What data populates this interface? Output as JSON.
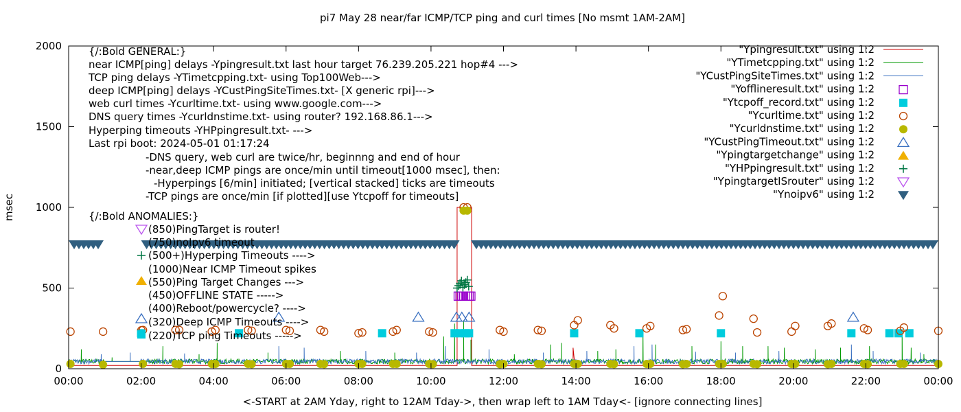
{
  "chart_data": {
    "type": "scatter",
    "title": "pi7 May 28  near/far ICMP/TCP ping and curl times [No msmt 1AM-2AM]",
    "xlabel": "<-START at 2AM Yday, right to 12AM Tday->, then wrap left to 1AM Tday<- [ignore connecting lines]",
    "ylabel": "msec",
    "xlim": [
      0,
      24
    ],
    "ylim": [
      0,
      2000
    ],
    "x_unit": "hours",
    "x_ticks": [
      {
        "x": 0,
        "label": "00:00"
      },
      {
        "x": 2,
        "label": "02:00"
      },
      {
        "x": 4,
        "label": "04:00"
      },
      {
        "x": 6,
        "label": "06:00"
      },
      {
        "x": 8,
        "label": "08:00"
      },
      {
        "x": 10,
        "label": "10:00"
      },
      {
        "x": 12,
        "label": "12:00"
      },
      {
        "x": 14,
        "label": "14:00"
      },
      {
        "x": 16,
        "label": "16:00"
      },
      {
        "x": 18,
        "label": "18:00"
      },
      {
        "x": 20,
        "label": "20:00"
      },
      {
        "x": 22,
        "label": "22:00"
      },
      {
        "x": 24,
        "label": "00:00"
      }
    ],
    "y_ticks": [
      {
        "y": 0,
        "label": "0"
      },
      {
        "y": 500,
        "label": "500"
      },
      {
        "y": 1000,
        "label": "1000"
      },
      {
        "y": 1500,
        "label": "1500"
      },
      {
        "y": 2000,
        "label": "2000"
      }
    ],
    "grid": false,
    "legend_position": "top-right",
    "annotations": [
      "{/:Bold GENERAL:}",
      "near ICMP[ping] delays -Ypingresult.txt last hour target 76.239.205.221 hop#4 --->",
      "TCP ping delays -YTimetcpping.txt- using Top100Web--->",
      "deep ICMP[ping] delays -YCustPingSiteTimes.txt- [X generic rpi]--->",
      "web curl times -Ycurltime.txt- using www.google.com--->",
      "DNS query times -Ycurldnstime.txt- using router? 192.168.86.1--->",
      "Hyperping timeouts -YHPpingresult.txt- --->",
      "Last rpi boot: 2024-05-01 01:17:24",
      "-DNS query, web curl are twice/hr, beginnng and end of hour",
      "-near,deep ICMP pings are once/min until timeout[1000 msec], then:",
      "-Hyperpings [6/min] initiated; [vertical stacked] ticks are timeouts",
      "-TCP pings are once/min [if plotted][use Ytcpoff for timeouts]",
      "{/:Bold ANOMALIES:}",
      "(850)PingTarget is router!",
      "(750)noIpv6 timeout",
      "(500+)Hyperping Timeouts ---->",
      "(1000)Near ICMP Timeout spikes",
      "(550)Ping Target Changes --->",
      "(450)OFFLINE STATE ----->",
      "(400)Reboot/powercycle? ---->",
      "(320)Deep ICMP Timeouts ---->",
      "(220)TCP ping Timeouts ----->"
    ],
    "series": [
      {
        "name": "\"Ypingresult.txt\" using 1:2",
        "style": "line",
        "color": "#cc0000",
        "baseline": 20,
        "spikes": [
          [
            10.72,
            1000
          ],
          [
            10.78,
            1000
          ],
          [
            11.05,
            1000
          ],
          [
            11.12,
            1000
          ],
          [
            13.92,
            130
          ],
          [
            13.97,
            110
          ]
        ]
      },
      {
        "name": "\"YTimetcpping.txt\" using 1:2",
        "style": "line",
        "color": "#009900",
        "baseline": 45,
        "spikes": [
          [
            0.35,
            120
          ],
          [
            1.2,
            70
          ],
          [
            2.6,
            140
          ],
          [
            3.6,
            90
          ],
          [
            4.1,
            160
          ],
          [
            5.5,
            100
          ],
          [
            7.5,
            110
          ],
          [
            9.0,
            100
          ],
          [
            10.35,
            200
          ],
          [
            10.65,
            280
          ],
          [
            10.9,
            300
          ],
          [
            11.1,
            180
          ],
          [
            12.3,
            90
          ],
          [
            13.3,
            150
          ],
          [
            13.6,
            160
          ],
          [
            14.6,
            110
          ],
          [
            15.1,
            120
          ],
          [
            15.85,
            230
          ],
          [
            16.2,
            150
          ],
          [
            17.2,
            140
          ],
          [
            18.0,
            170
          ],
          [
            18.6,
            140
          ],
          [
            19.3,
            140
          ],
          [
            19.75,
            130
          ],
          [
            20.6,
            120
          ],
          [
            21.3,
            130
          ],
          [
            22.1,
            140
          ],
          [
            23.0,
            240
          ],
          [
            23.25,
            130
          ],
          [
            23.6,
            90
          ]
        ]
      },
      {
        "name": "\"YCustPingSiteTimes.txt\" using 1:2",
        "style": "line",
        "color": "#3a70c0",
        "baseline": 45,
        "spikes": [
          [
            0.9,
            90
          ],
          [
            1.7,
            100
          ],
          [
            3.2,
            95
          ],
          [
            5.8,
            140
          ],
          [
            6.5,
            130
          ],
          [
            8.2,
            110
          ],
          [
            9.6,
            100
          ],
          [
            10.4,
            140
          ],
          [
            11.6,
            120
          ],
          [
            13.1,
            100
          ],
          [
            14.3,
            110
          ],
          [
            15.6,
            140
          ],
          [
            16.1,
            150
          ],
          [
            17.3,
            105
          ],
          [
            18.4,
            100
          ],
          [
            19.6,
            110
          ],
          [
            21.6,
            150
          ],
          [
            22.2,
            110
          ],
          [
            23.5,
            100
          ]
        ]
      },
      {
        "name": "\"Yofflineresult.txt\" using 1:2",
        "style": "marker",
        "marker": "square-open",
        "color": "#9900cc",
        "points": [
          [
            10.75,
            450
          ],
          [
            10.8,
            450
          ],
          [
            10.85,
            450
          ],
          [
            10.9,
            450
          ],
          [
            10.95,
            450
          ],
          [
            11.0,
            450
          ],
          [
            11.05,
            450
          ],
          [
            11.1,
            450
          ]
        ]
      },
      {
        "name": "\"Ytcpoff_record.txt\" using 1:2",
        "style": "marker",
        "marker": "square-filled",
        "color": "#00ccdd",
        "points": [
          [
            2.0,
            220
          ],
          [
            4.7,
            220
          ],
          [
            8.65,
            220
          ],
          [
            10.65,
            220
          ],
          [
            10.8,
            220
          ],
          [
            10.95,
            220
          ],
          [
            11.05,
            220
          ],
          [
            13.95,
            220
          ],
          [
            15.75,
            220
          ],
          [
            18.0,
            220
          ],
          [
            21.6,
            220
          ],
          [
            22.65,
            220
          ],
          [
            22.9,
            220
          ],
          [
            23.2,
            220
          ]
        ]
      },
      {
        "name": "\"Ycurltime.txt\" using 1:2",
        "style": "marker",
        "marker": "circle-open",
        "color": "#bb4400",
        "points": [
          [
            0.05,
            230
          ],
          [
            0.95,
            230
          ],
          [
            2.05,
            240
          ],
          [
            2.95,
            240
          ],
          [
            3.05,
            240
          ],
          [
            3.95,
            230
          ],
          [
            4.05,
            240
          ],
          [
            4.95,
            240
          ],
          [
            5.05,
            235
          ],
          [
            6.0,
            240
          ],
          [
            6.1,
            235
          ],
          [
            6.95,
            240
          ],
          [
            7.05,
            230
          ],
          [
            8.0,
            220
          ],
          [
            8.1,
            225
          ],
          [
            8.95,
            230
          ],
          [
            9.05,
            240
          ],
          [
            9.95,
            230
          ],
          [
            10.05,
            225
          ],
          [
            10.9,
            1000
          ],
          [
            11.0,
            1000
          ],
          [
            11.9,
            240
          ],
          [
            12.0,
            230
          ],
          [
            12.95,
            240
          ],
          [
            13.05,
            235
          ],
          [
            13.95,
            270
          ],
          [
            14.05,
            300
          ],
          [
            14.95,
            270
          ],
          [
            15.05,
            250
          ],
          [
            15.95,
            250
          ],
          [
            16.05,
            265
          ],
          [
            16.95,
            240
          ],
          [
            17.05,
            245
          ],
          [
            17.95,
            330
          ],
          [
            18.05,
            450
          ],
          [
            18.9,
            310
          ],
          [
            19.0,
            225
          ],
          [
            19.95,
            230
          ],
          [
            20.05,
            265
          ],
          [
            20.95,
            265
          ],
          [
            21.05,
            280
          ],
          [
            21.95,
            250
          ],
          [
            22.05,
            240
          ],
          [
            22.95,
            235
          ],
          [
            23.05,
            255
          ],
          [
            24.0,
            235
          ]
        ]
      },
      {
        "name": "\"Ycurldnstime.txt\" using 1:2",
        "style": "marker",
        "marker": "circle-filled",
        "color": "#b8b800",
        "points": [
          [
            0.05,
            30
          ],
          [
            0.95,
            25
          ],
          [
            2.05,
            30
          ],
          [
            2.95,
            30
          ],
          [
            3.05,
            28
          ],
          [
            3.95,
            30
          ],
          [
            4.05,
            30
          ],
          [
            4.95,
            30
          ],
          [
            5.05,
            28
          ],
          [
            6.0,
            30
          ],
          [
            6.1,
            30
          ],
          [
            6.95,
            30
          ],
          [
            7.05,
            28
          ],
          [
            8.0,
            30
          ],
          [
            8.1,
            30
          ],
          [
            8.95,
            30
          ],
          [
            9.05,
            30
          ],
          [
            9.95,
            30
          ],
          [
            10.05,
            28
          ],
          [
            10.9,
            980
          ],
          [
            11.0,
            980
          ],
          [
            11.9,
            28
          ],
          [
            12.0,
            30
          ],
          [
            12.95,
            30
          ],
          [
            13.05,
            28
          ],
          [
            13.95,
            30
          ],
          [
            14.05,
            30
          ],
          [
            14.95,
            30
          ],
          [
            15.05,
            28
          ],
          [
            15.95,
            30
          ],
          [
            16.05,
            30
          ],
          [
            16.95,
            28
          ],
          [
            17.05,
            30
          ],
          [
            17.95,
            30
          ],
          [
            18.05,
            30
          ],
          [
            18.9,
            30
          ],
          [
            19.0,
            28
          ],
          [
            19.95,
            30
          ],
          [
            20.05,
            30
          ],
          [
            20.95,
            28
          ],
          [
            21.05,
            30
          ],
          [
            21.95,
            30
          ],
          [
            22.05,
            28
          ],
          [
            22.95,
            30
          ],
          [
            23.05,
            30
          ],
          [
            24.0,
            30
          ]
        ]
      },
      {
        "name": "\"YCustPingTimeout.txt\" using 1:2",
        "style": "marker",
        "marker": "triangle-up-open",
        "color": "#3a70c0",
        "points": [
          [
            5.8,
            320
          ],
          [
            9.65,
            320
          ],
          [
            10.7,
            320
          ],
          [
            10.85,
            320
          ],
          [
            11.05,
            320
          ],
          [
            21.65,
            320
          ]
        ]
      },
      {
        "name": "\"Ypingtargetchange\" using 1:2",
        "style": "marker",
        "marker": "triangle-up-filled",
        "color": "#f0b000",
        "points": []
      },
      {
        "name": "\"YHPpingresult.txt\" using 1:2",
        "style": "marker",
        "marker": "plus",
        "color": "#007744",
        "points": [
          [
            10.72,
            500
          ],
          [
            10.76,
            515
          ],
          [
            10.8,
            530
          ],
          [
            10.84,
            545
          ],
          [
            10.88,
            505
          ],
          [
            10.92,
            520
          ],
          [
            10.96,
            535
          ],
          [
            11.0,
            550
          ],
          [
            11.04,
            510
          ]
        ]
      },
      {
        "name": "\"YpingtargetISrouter\" using 1:2",
        "style": "marker",
        "marker": "triangle-down-open",
        "color": "#bb55ee",
        "points": []
      },
      {
        "name": "\"Ynoipv6\" using 1:2",
        "style": "marker",
        "marker": "triangle-down-filled",
        "color": "#305f80",
        "value": 770,
        "segments": [
          [
            0.0,
            1.0
          ],
          [
            2.0,
            10.8
          ],
          [
            11.1,
            24.0
          ]
        ]
      }
    ]
  }
}
